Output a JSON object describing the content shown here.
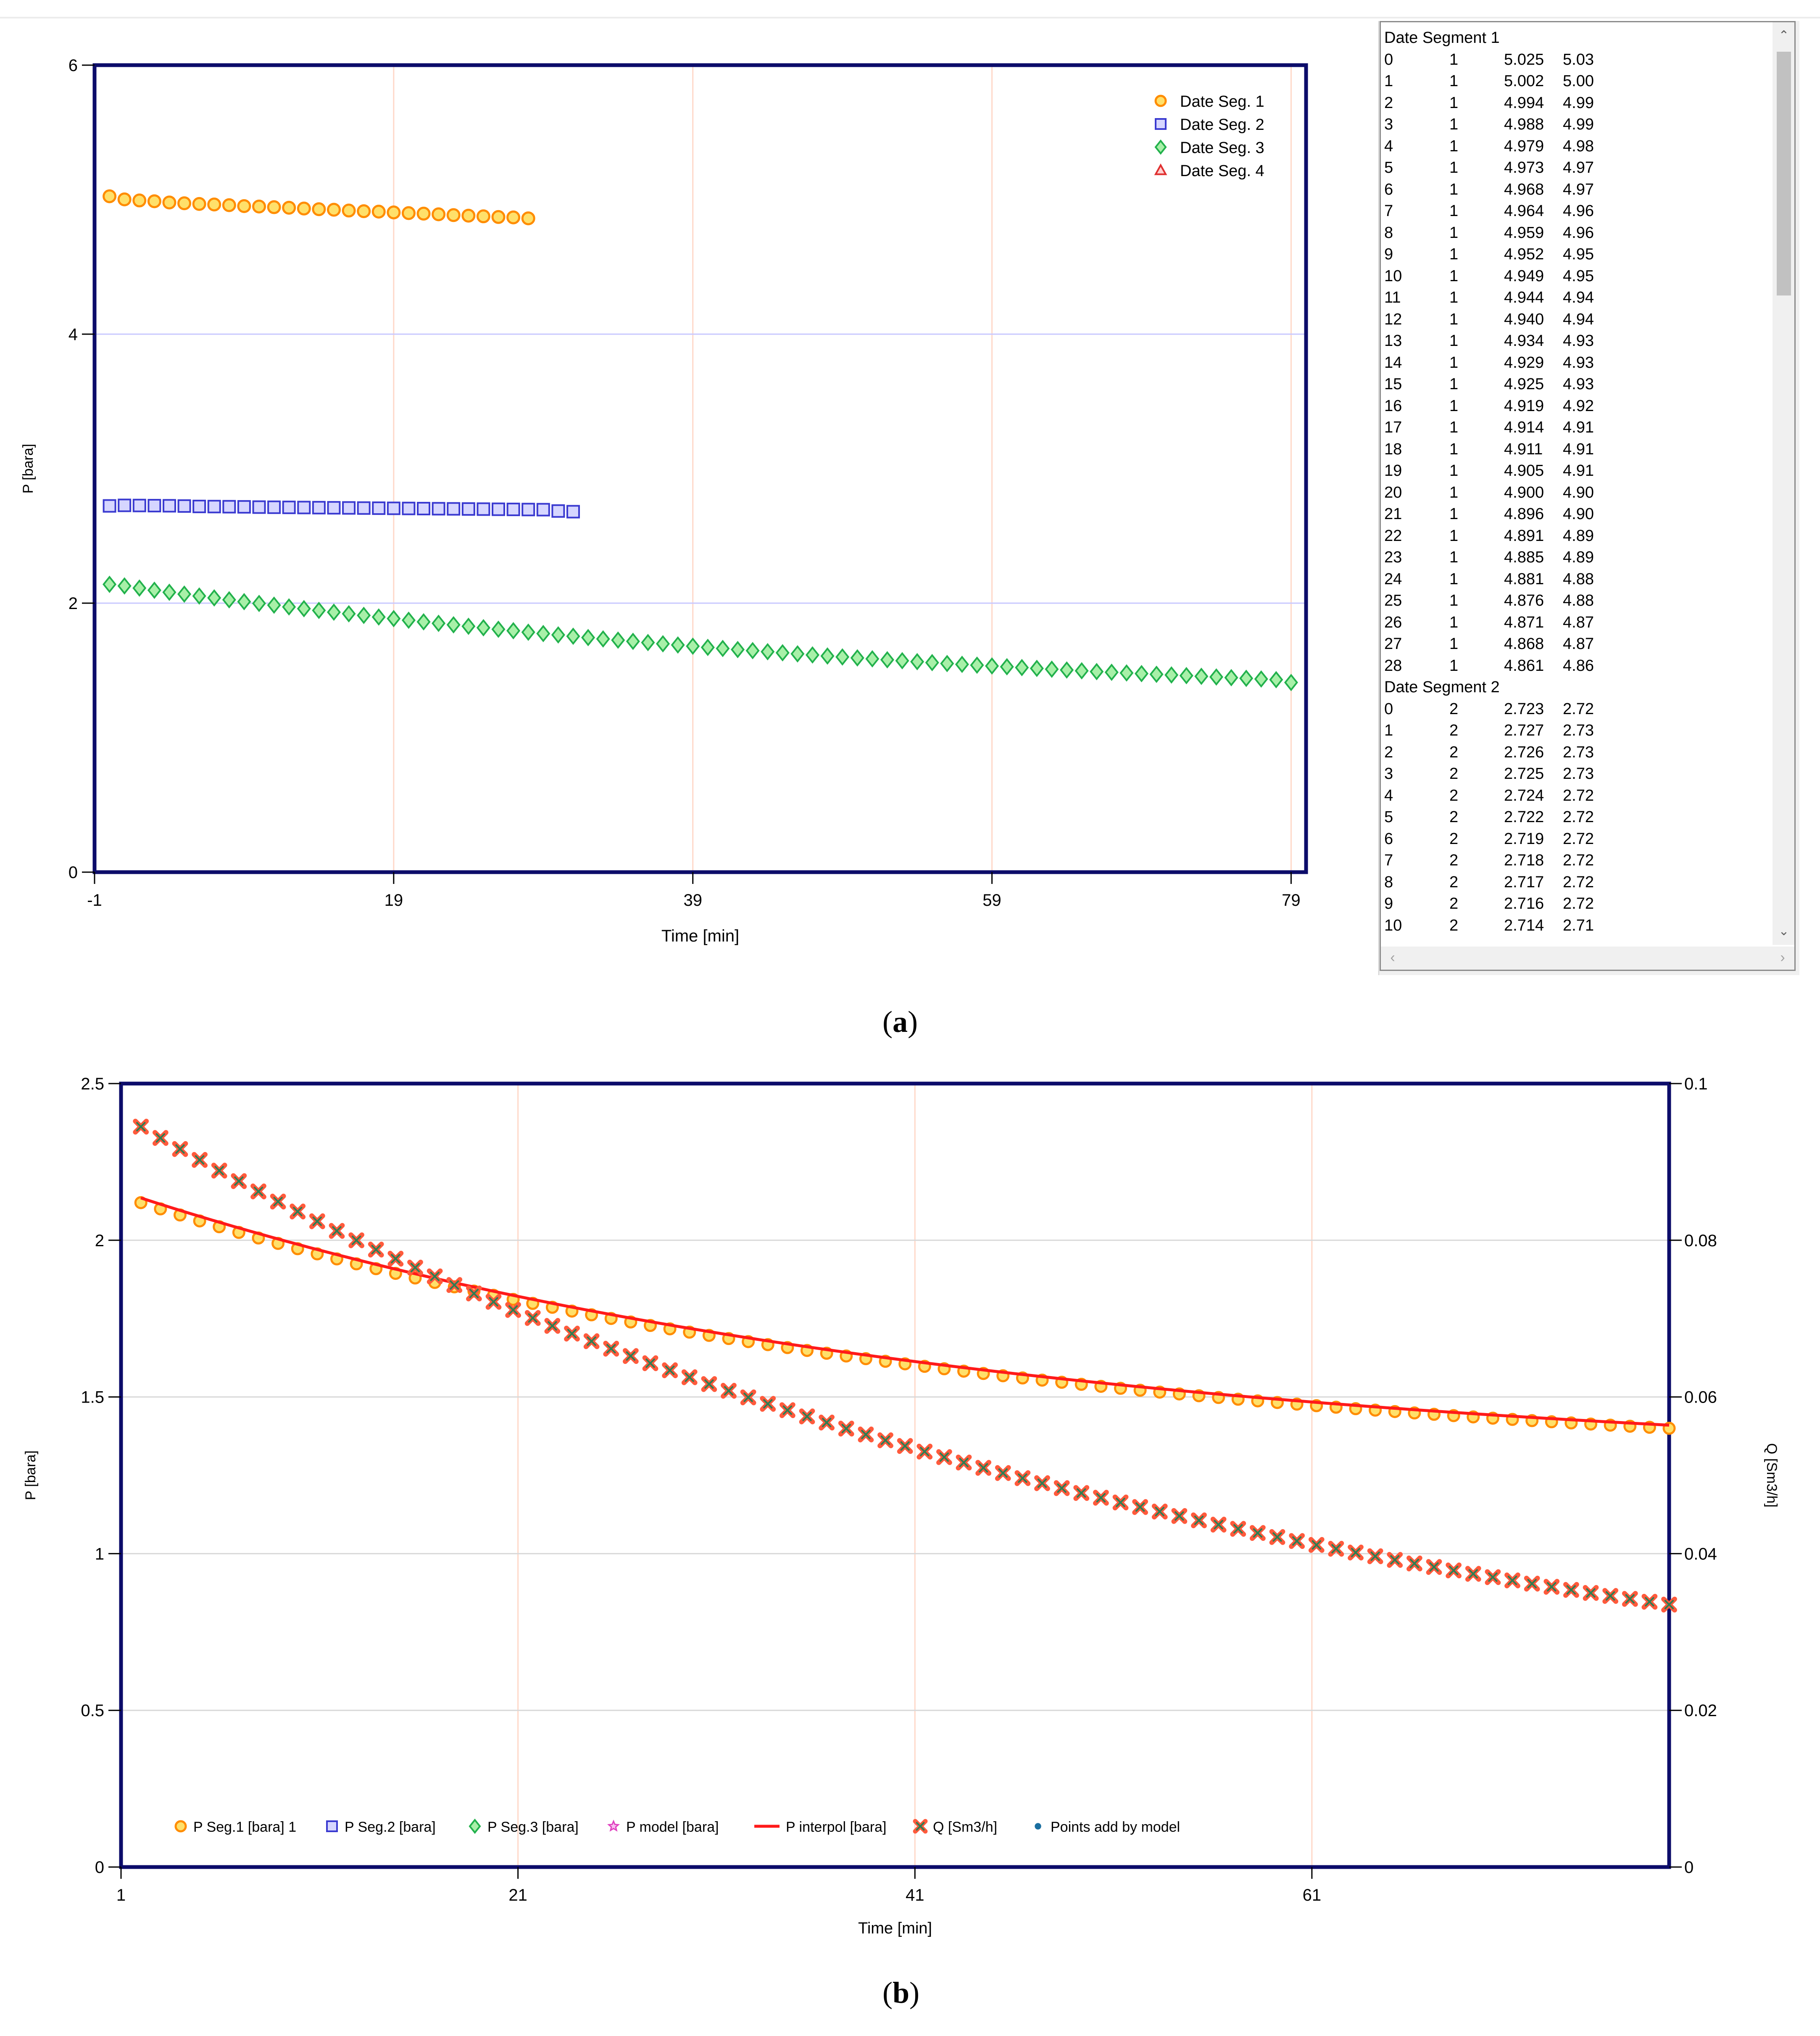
{
  "captions": {
    "a_letter": "a",
    "b_letter": "b"
  },
  "chart_data": [
    {
      "type": "scatter",
      "title": "",
      "xlabel": "Time [min]",
      "ylabel": "P [bara]",
      "xlim": [
        -1,
        80
      ],
      "ylim": [
        0,
        6
      ],
      "xticks": [
        "-1",
        "19",
        "39",
        "59",
        "79"
      ],
      "yticks": [
        "0",
        "2",
        "4",
        "6"
      ],
      "xgrid": [
        -1,
        19,
        39,
        59,
        79
      ],
      "ygrid": [
        2,
        4
      ],
      "legend_position": "top-right",
      "series": [
        {
          "name": "Date Seg. 1",
          "marker": "circle",
          "color": "#ff8c00",
          "fill": "#ffe06a",
          "x": [
            0,
            1,
            2,
            3,
            4,
            5,
            6,
            7,
            8,
            9,
            10,
            11,
            12,
            13,
            14,
            15,
            16,
            17,
            18,
            19,
            20,
            21,
            22,
            23,
            24,
            25,
            26,
            27,
            28
          ],
          "values": [
            5.025,
            5.002,
            4.994,
            4.988,
            4.979,
            4.973,
            4.968,
            4.964,
            4.959,
            4.952,
            4.949,
            4.944,
            4.94,
            4.934,
            4.929,
            4.925,
            4.919,
            4.914,
            4.911,
            4.905,
            4.9,
            4.896,
            4.891,
            4.885,
            4.881,
            4.876,
            4.871,
            4.868,
            4.861
          ]
        },
        {
          "name": "Date Seg. 2",
          "marker": "square",
          "color": "#3a3ad0",
          "fill": "#d6d6ff",
          "x": [
            0,
            1,
            2,
            3,
            4,
            5,
            6,
            7,
            8,
            9,
            10,
            11,
            12,
            13,
            14,
            15,
            16,
            17,
            18,
            19,
            20,
            21,
            22,
            23,
            24,
            25,
            26,
            27,
            28,
            29,
            30,
            31
          ],
          "values": [
            2.723,
            2.727,
            2.726,
            2.725,
            2.724,
            2.722,
            2.719,
            2.718,
            2.717,
            2.716,
            2.714,
            2.713,
            2.712,
            2.711,
            2.71,
            2.709,
            2.708,
            2.707,
            2.706,
            2.705,
            2.704,
            2.703,
            2.702,
            2.701,
            2.7,
            2.699,
            2.698,
            2.697,
            2.696,
            2.695,
            2.685,
            2.68
          ]
        },
        {
          "name": "Date Seg. 3",
          "marker": "diamond",
          "color": "#22b14c",
          "fill": "#a8f0a8",
          "x": [
            0,
            1,
            2,
            3,
            4,
            5,
            6,
            7,
            8,
            9,
            10,
            11,
            12,
            13,
            14,
            15,
            16,
            17,
            18,
            19,
            20,
            21,
            22,
            23,
            24,
            25,
            26,
            27,
            28,
            29,
            30,
            31,
            32,
            33,
            34,
            35,
            36,
            37,
            38,
            39,
            40,
            41,
            42,
            43,
            44,
            45,
            46,
            47,
            48,
            49,
            50,
            51,
            52,
            53,
            54,
            55,
            56,
            57,
            58,
            59,
            60,
            61,
            62,
            63,
            64,
            65,
            66,
            67,
            68,
            69,
            70,
            71,
            72,
            73,
            74,
            75,
            76,
            77,
            78,
            79
          ],
          "values": [
            2.14,
            2.128,
            2.112,
            2.096,
            2.081,
            2.067,
            2.053,
            2.039,
            2.025,
            2.011,
            1.998,
            1.985,
            1.972,
            1.959,
            1.946,
            1.933,
            1.921,
            1.909,
            1.897,
            1.885,
            1.873,
            1.861,
            1.85,
            1.839,
            1.828,
            1.817,
            1.806,
            1.795,
            1.784,
            1.774,
            1.764,
            1.754,
            1.744,
            1.734,
            1.725,
            1.716,
            1.707,
            1.698,
            1.689,
            1.68,
            1.671,
            1.663,
            1.655,
            1.647,
            1.639,
            1.631,
            1.623,
            1.615,
            1.607,
            1.6,
            1.593,
            1.586,
            1.579,
            1.572,
            1.565,
            1.558,
            1.551,
            1.545,
            1.539,
            1.533,
            1.527,
            1.521,
            1.515,
            1.509,
            1.503,
            1.497,
            1.491,
            1.486,
            1.481,
            1.476,
            1.471,
            1.466,
            1.461,
            1.456,
            1.451,
            1.446,
            1.441,
            1.436,
            1.431,
            1.41
          ]
        },
        {
          "name": "Date Seg. 4",
          "marker": "triangle",
          "color": "#e03030",
          "fill": "#ffd0d0",
          "x": [],
          "values": []
        }
      ]
    },
    {
      "type": "scatter",
      "title": "",
      "xlabel": "Time [min]",
      "ylabel": "P [bara]",
      "y2label": "Q [Sm3/h]",
      "xlim": [
        1,
        79
      ],
      "ylim": [
        0,
        2.5
      ],
      "y2lim": [
        0,
        0.1
      ],
      "xticks": [
        "1",
        "21",
        "41",
        "61"
      ],
      "yticks": [
        "0",
        "0.5",
        "1",
        "1.5",
        "2",
        "2.5"
      ],
      "y2ticks": [
        "0",
        "0.02",
        "0.04",
        "0.06",
        "0.08",
        "0.1"
      ],
      "xgrid": [
        21,
        41,
        61
      ],
      "ygrid": [
        0.5,
        1,
        1.5,
        2
      ],
      "legend_position": "bottom-left",
      "legend": [
        {
          "name": "P Seg.1 [bara] 1",
          "marker": "circle",
          "color": "#ff8c00",
          "fill": "#ffe06a"
        },
        {
          "name": "P Seg.2 [bara]",
          "marker": "square",
          "color": "#3a3ad0",
          "fill": "#d6d6ff"
        },
        {
          "name": "P Seg.3 [bara]",
          "marker": "diamond",
          "color": "#22b14c",
          "fill": "#a8f0a8"
        },
        {
          "name": "P model [bara]",
          "marker": "star",
          "color": "#e040c0",
          "fill": "#f8c0f0"
        },
        {
          "name": "P interpol [bara]",
          "marker": "line",
          "color": "#ff1a1a",
          "fill": "none"
        },
        {
          "name": "Q [Sm3/h]",
          "marker": "x",
          "color": "#2e7d52",
          "fill": "#ff5a3c"
        },
        {
          "name": "Points add by model",
          "marker": "dot",
          "color": "#1a6fa0",
          "fill": "#1a6fa0"
        }
      ],
      "series": [
        {
          "name": "P Seg.1 [bara] 1",
          "marker": "circle",
          "axis": "left",
          "t_start": 2,
          "t_end": 79,
          "p_start": 2.12,
          "p_end": 1.4,
          "tau": 42,
          "count": 79
        },
        {
          "name": "P interpol [bara]",
          "marker": "line",
          "axis": "left",
          "t_start": 2,
          "t_end": 79,
          "p_start": 2.135,
          "p_end": 1.41,
          "tau": 42
        },
        {
          "name": "Q [Sm3/h]",
          "marker": "x",
          "axis": "right",
          "t_start": 2,
          "t_end": 79,
          "q_start": 0.0945,
          "q_end": 0.0335,
          "tau": 55,
          "count": 79
        }
      ]
    }
  ],
  "list_panel": {
    "segments": [
      {
        "header": "Date Segment 1",
        "rows": [
          [
            "0",
            "1",
            "5.025",
            "5.03"
          ],
          [
            "1",
            "1",
            "5.002",
            "5.00"
          ],
          [
            "2",
            "1",
            "4.994",
            "4.99"
          ],
          [
            "3",
            "1",
            "4.988",
            "4.99"
          ],
          [
            "4",
            "1",
            "4.979",
            "4.98"
          ],
          [
            "5",
            "1",
            "4.973",
            "4.97"
          ],
          [
            "6",
            "1",
            "4.968",
            "4.97"
          ],
          [
            "7",
            "1",
            "4.964",
            "4.96"
          ],
          [
            "8",
            "1",
            "4.959",
            "4.96"
          ],
          [
            "9",
            "1",
            "4.952",
            "4.95"
          ],
          [
            "10",
            "1",
            "4.949",
            "4.95"
          ],
          [
            "11",
            "1",
            "4.944",
            "4.94"
          ],
          [
            "12",
            "1",
            "4.940",
            "4.94"
          ],
          [
            "13",
            "1",
            "4.934",
            "4.93"
          ],
          [
            "14",
            "1",
            "4.929",
            "4.93"
          ],
          [
            "15",
            "1",
            "4.925",
            "4.93"
          ],
          [
            "16",
            "1",
            "4.919",
            "4.92"
          ],
          [
            "17",
            "1",
            "4.914",
            "4.91"
          ],
          [
            "18",
            "1",
            "4.911",
            "4.91"
          ],
          [
            "19",
            "1",
            "4.905",
            "4.91"
          ],
          [
            "20",
            "1",
            "4.900",
            "4.90"
          ],
          [
            "21",
            "1",
            "4.896",
            "4.90"
          ],
          [
            "22",
            "1",
            "4.891",
            "4.89"
          ],
          [
            "23",
            "1",
            "4.885",
            "4.89"
          ],
          [
            "24",
            "1",
            "4.881",
            "4.88"
          ],
          [
            "25",
            "1",
            "4.876",
            "4.88"
          ],
          [
            "26",
            "1",
            "4.871",
            "4.87"
          ],
          [
            "27",
            "1",
            "4.868",
            "4.87"
          ],
          [
            "28",
            "1",
            "4.861",
            "4.86"
          ]
        ]
      },
      {
        "header": "Date Segment 2",
        "rows": [
          [
            "0",
            "2",
            "2.723",
            "2.72"
          ],
          [
            "1",
            "2",
            "2.727",
            "2.73"
          ],
          [
            "2",
            "2",
            "2.726",
            "2.73"
          ],
          [
            "3",
            "2",
            "2.725",
            "2.73"
          ],
          [
            "4",
            "2",
            "2.724",
            "2.72"
          ],
          [
            "5",
            "2",
            "2.722",
            "2.72"
          ],
          [
            "6",
            "2",
            "2.719",
            "2.72"
          ],
          [
            "7",
            "2",
            "2.718",
            "2.72"
          ],
          [
            "8",
            "2",
            "2.717",
            "2.72"
          ],
          [
            "9",
            "2",
            "2.716",
            "2.72"
          ],
          [
            "10",
            "2",
            "2.714",
            "2.71"
          ]
        ]
      }
    ],
    "scroll_up_icon": "chevron-up-icon",
    "scroll_down_icon": "chevron-down-icon",
    "scroll_left_icon": "chevron-left-icon",
    "scroll_right_icon": "chevron-right-icon"
  }
}
